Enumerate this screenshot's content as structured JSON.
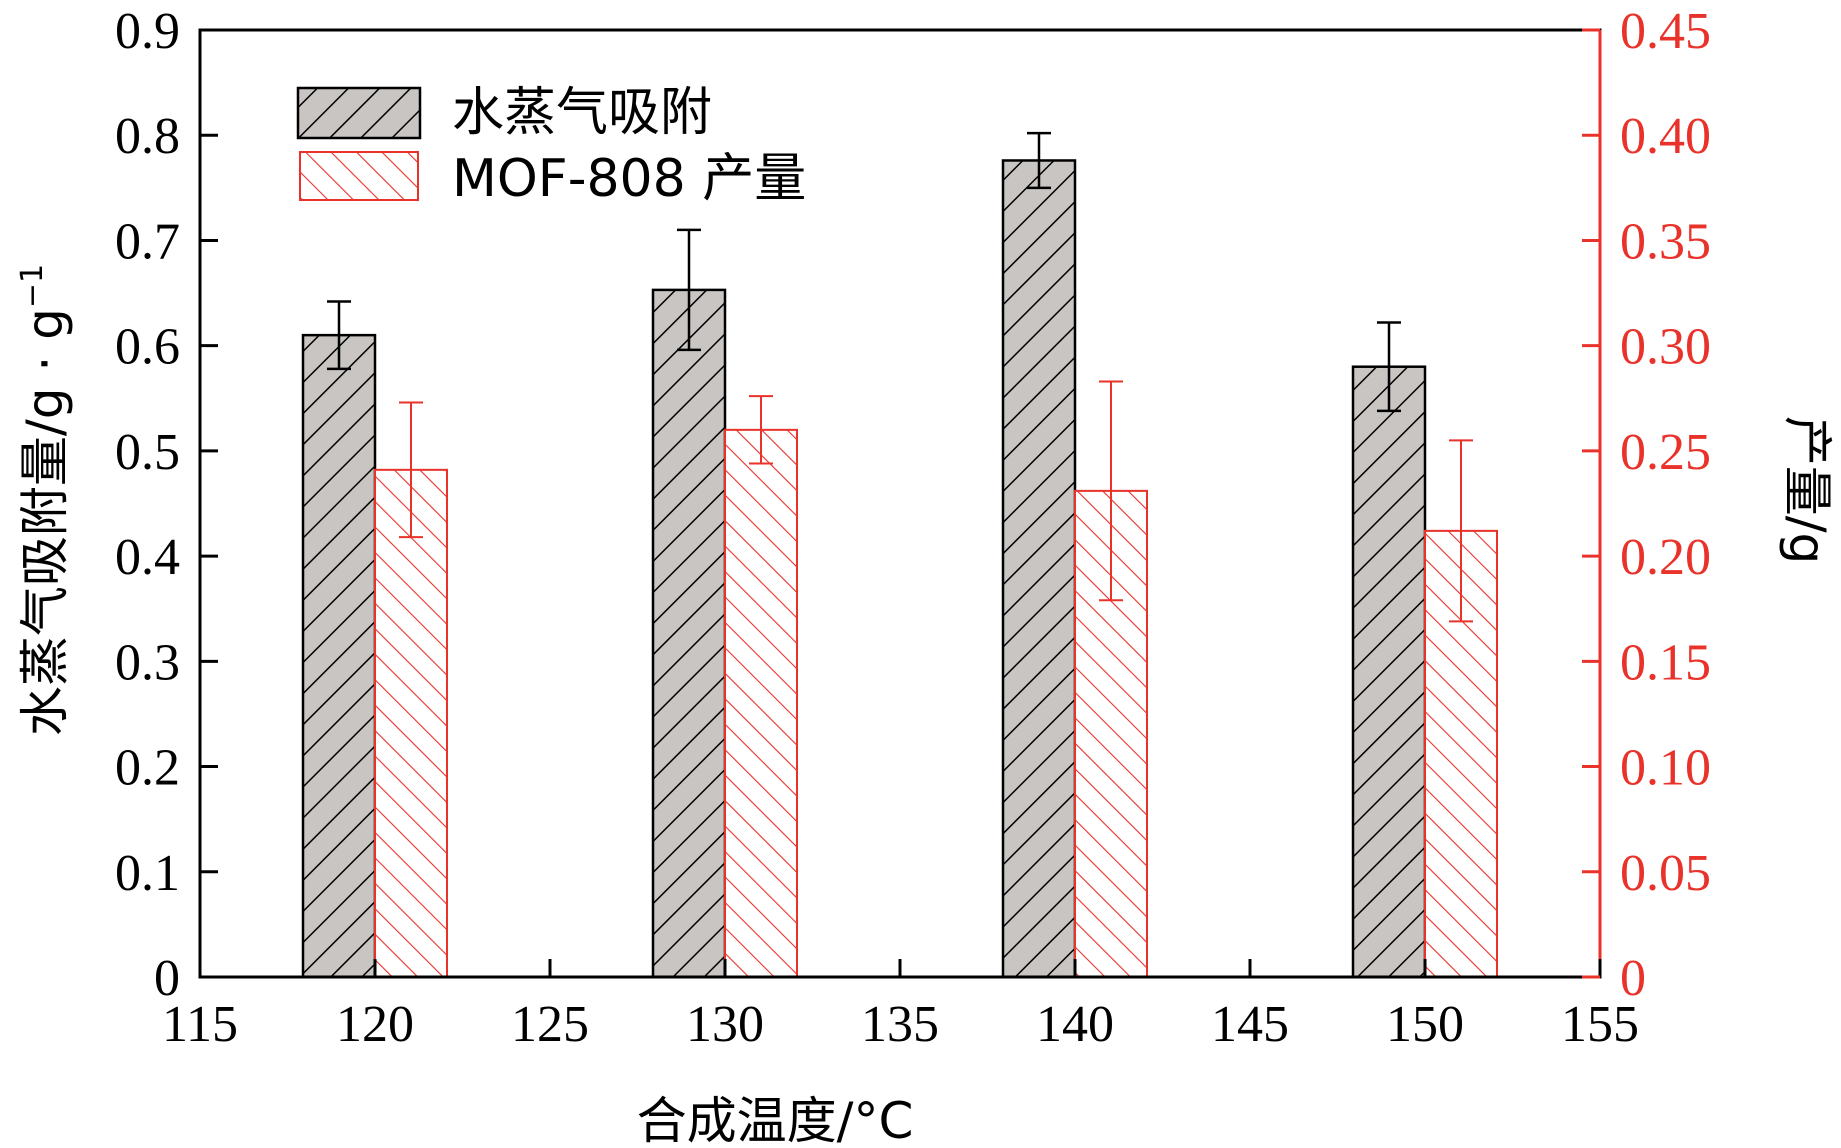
{
  "chart_data": {
    "type": "bar",
    "xlabel": "合成温度/°C",
    "ylabel_main": "水蒸气吸附量/g · g",
    "ylabel_sup": "−1",
    "y2label": "产量/g",
    "xlim": [
      115,
      155
    ],
    "ylim": [
      0,
      0.9
    ],
    "y2lim": [
      0,
      0.45
    ],
    "x_ticks": [
      "115",
      "120",
      "125",
      "130",
      "135",
      "140",
      "145",
      "150",
      "155"
    ],
    "y_ticks": [
      "0",
      "0.1",
      "0.2",
      "0.3",
      "0.4",
      "0.5",
      "0.6",
      "0.7",
      "0.8",
      "0.9"
    ],
    "y2_ticks": [
      "0",
      "0.05",
      "0.10",
      "0.15",
      "0.20",
      "0.25",
      "0.30",
      "0.35",
      "0.40",
      "0.45"
    ],
    "categories": [
      120,
      130,
      140,
      150
    ],
    "legend_position": "top-left",
    "series": [
      {
        "name": "水蒸气吸附",
        "axis": "left",
        "values": [
          0.61,
          0.653,
          0.776,
          0.58
        ],
        "errors": [
          0.032,
          0.057,
          0.026,
          0.042
        ],
        "color": "#000000",
        "fill": "#c9c5c2"
      },
      {
        "name": "MOF-808 产量",
        "axis": "right",
        "values": [
          0.241,
          0.26,
          0.231,
          0.212
        ],
        "errors": [
          0.032,
          0.016,
          0.052,
          0.043
        ],
        "color": "#e8322a",
        "fill": "#ffffff"
      }
    ]
  }
}
